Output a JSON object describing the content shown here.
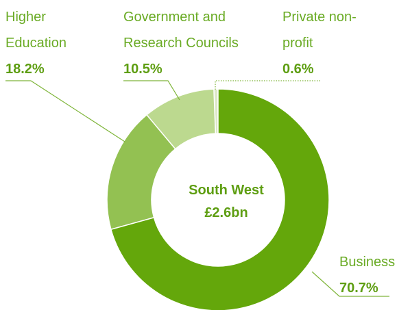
{
  "chart_data": {
    "type": "donut",
    "center_title": "South West",
    "center_value": "£2.6bn",
    "categories": [
      "Business",
      "Higher Education",
      "Government and Research Councils",
      "Private non-profit"
    ],
    "values": [
      70.7,
      18.2,
      10.5,
      0.6
    ],
    "value_labels": [
      "70.7%",
      "18.2%",
      "10.5%",
      "0.6%"
    ],
    "colors": [
      "#64a70b",
      "#93c152",
      "#bcd98f",
      "#dde9c8"
    ]
  }
}
